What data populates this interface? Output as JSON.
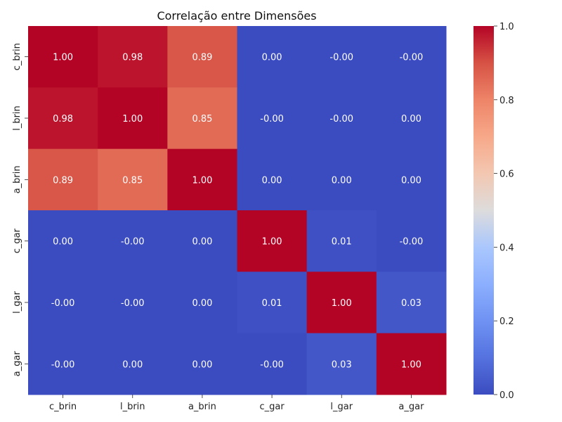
{
  "chart_data": {
    "type": "heatmap",
    "title": "Correlação entre Dimensões",
    "x_labels": [
      "c_brin",
      "l_brin",
      "a_brin",
      "c_gar",
      "l_gar",
      "a_gar"
    ],
    "y_labels": [
      "c_brin",
      "l_brin",
      "a_brin",
      "c_gar",
      "l_gar",
      "a_gar"
    ],
    "values": [
      [
        1.0,
        0.98,
        0.89,
        0.0,
        -0.0,
        -0.0
      ],
      [
        0.98,
        1.0,
        0.85,
        -0.0,
        -0.0,
        0.0
      ],
      [
        0.89,
        0.85,
        1.0,
        0.0,
        0.0,
        0.0
      ],
      [
        0.0,
        -0.0,
        0.0,
        1.0,
        0.01,
        -0.0
      ],
      [
        -0.0,
        -0.0,
        0.0,
        0.01,
        1.0,
        0.03
      ],
      [
        -0.0,
        0.0,
        0.0,
        -0.0,
        0.03,
        1.0
      ]
    ],
    "cell_labels": [
      [
        "1.00",
        "0.98",
        "0.89",
        "0.00",
        "-0.00",
        "-0.00"
      ],
      [
        "0.98",
        "1.00",
        "0.85",
        "-0.00",
        "-0.00",
        "0.00"
      ],
      [
        "0.89",
        "0.85",
        "1.00",
        "0.00",
        "0.00",
        "0.00"
      ],
      [
        "0.00",
        "-0.00",
        "0.00",
        "1.00",
        "0.01",
        "-0.00"
      ],
      [
        "-0.00",
        "-0.00",
        "0.00",
        "0.01",
        "1.00",
        "0.03"
      ],
      [
        "-0.00",
        "0.00",
        "0.00",
        "-0.00",
        "0.03",
        "1.00"
      ]
    ],
    "colormap": "coolwarm",
    "colorbar": {
      "range": [
        0.0,
        1.0
      ],
      "ticks": [
        0.0,
        0.2,
        0.4,
        0.6,
        0.8,
        1.0
      ],
      "tick_labels": [
        "0.0",
        "0.2",
        "0.4",
        "0.6",
        "0.8",
        "1.0"
      ]
    }
  }
}
